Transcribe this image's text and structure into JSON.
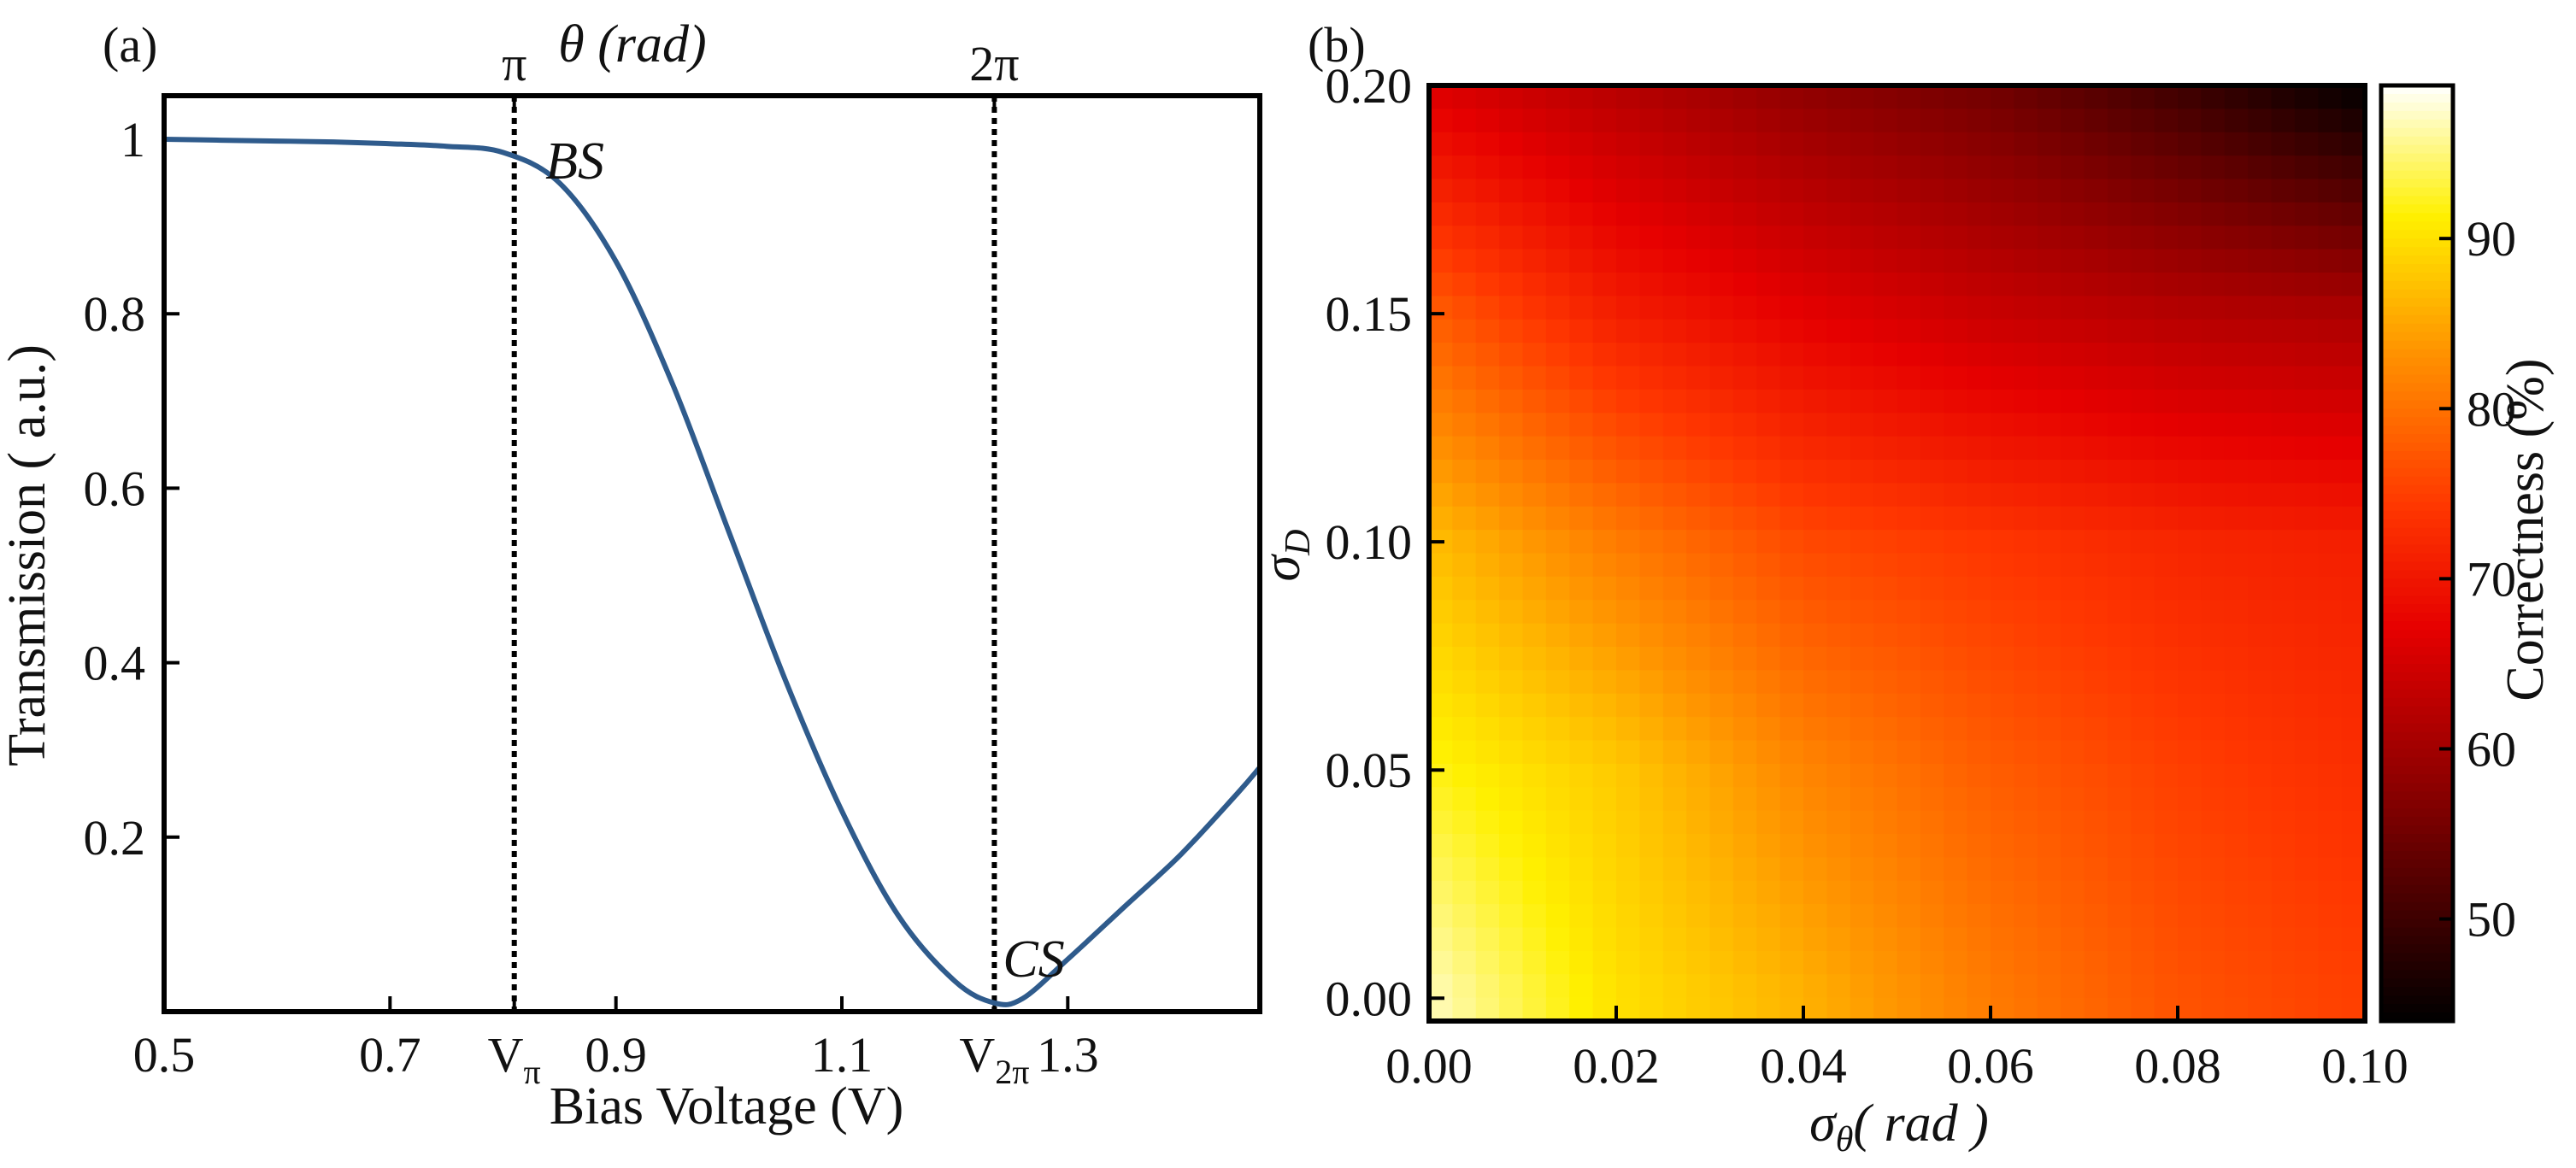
{
  "chart_data": [
    {
      "panel": "(a)",
      "type": "line",
      "xlabel": "Bias Voltage (V)",
      "ylabel": "Transmission ( a.u.)",
      "top_axis_label": "θ (rad)",
      "top_axis_label_symbol": "θ",
      "top_axis_label_unit": "(rad)",
      "top_ticks": [
        {
          "x": 0.81,
          "label": "π"
        },
        {
          "x": 1.235,
          "label": "2π"
        }
      ],
      "xlim": [
        0.5,
        1.47
      ],
      "ylim": [
        0.0,
        1.05
      ],
      "x_ticks": [
        {
          "x": 0.5,
          "label": "0.5"
        },
        {
          "x": 0.7,
          "label": "0.7"
        },
        {
          "x": 0.81,
          "label": "V",
          "sub": "π"
        },
        {
          "x": 0.9,
          "label": "0.9"
        },
        {
          "x": 1.1,
          "label": "1.1"
        },
        {
          "x": 1.235,
          "label": "V",
          "sub": "2π"
        },
        {
          "x": 1.3,
          "label": "1.3"
        }
      ],
      "y_ticks": [
        {
          "y": 1.0,
          "label": "1"
        },
        {
          "y": 0.8,
          "label": "0.8"
        },
        {
          "y": 0.6,
          "label": "0.6"
        },
        {
          "y": 0.4,
          "label": "0.4"
        },
        {
          "y": 0.2,
          "label": "0.2"
        }
      ],
      "vlines": [
        0.81,
        1.235
      ],
      "annotations": [
        {
          "text": "BS",
          "x": 0.83,
          "y": 0.965
        },
        {
          "text": "CS",
          "x": 1.235,
          "y": 0.05
        }
      ],
      "series": [
        {
          "name": "Transmission",
          "color": "#2f5b8c",
          "x": [
            0.5,
            0.55,
            0.6,
            0.65,
            0.7,
            0.75,
            0.8,
            0.85,
            0.9,
            0.95,
            1.0,
            1.05,
            1.1,
            1.15,
            1.2,
            1.235,
            1.26,
            1.3,
            1.35,
            1.4,
            1.45,
            1.47
          ],
          "y": [
            1.0,
            0.999,
            0.998,
            0.997,
            0.995,
            0.992,
            0.985,
            0.95,
            0.86,
            0.72,
            0.55,
            0.38,
            0.23,
            0.11,
            0.035,
            0.01,
            0.015,
            0.06,
            0.12,
            0.18,
            0.25,
            0.28
          ]
        }
      ]
    },
    {
      "panel": "(b)",
      "type": "heatmap",
      "xlabel": "σθ( rad )",
      "xlabel_symbol": "σ",
      "xlabel_sub": "θ",
      "xlabel_unit": "( rad )",
      "ylabel": "σD",
      "ylabel_symbol": "σ",
      "ylabel_sub": "D",
      "xlim": [
        0.0,
        0.1
      ],
      "ylim": [
        -0.005,
        0.2
      ],
      "x_ticks": [
        "0.00",
        "0.02",
        "0.04",
        "0.06",
        "0.08",
        "0.10"
      ],
      "x_tick_values": [
        0.0,
        0.02,
        0.04,
        0.06,
        0.08,
        0.1
      ],
      "y_ticks": [
        "0.00",
        "0.05",
        "0.10",
        "0.15",
        "0.20"
      ],
      "y_tick_values": [
        0.0,
        0.05,
        0.1,
        0.15,
        0.2
      ],
      "colorbar": {
        "label": "Correctness (%)",
        "range": [
          44,
          99
        ],
        "ticks": [
          "50",
          "60",
          "70",
          "80",
          "90"
        ],
        "tick_values": [
          50,
          60,
          70,
          80,
          90
        ]
      },
      "x": [
        0.0,
        0.02,
        0.04,
        0.06,
        0.08,
        0.1
      ],
      "y": [
        0.2,
        0.15,
        0.1,
        0.05,
        0.0
      ],
      "z": [
        [
          66,
          62,
          58,
          55,
          50,
          44
        ],
        [
          78,
          71,
          67,
          64,
          62,
          61
        ],
        [
          87,
          81,
          76,
          74,
          72,
          71
        ],
        [
          92,
          88,
          82,
          78,
          75,
          73
        ],
        [
          97,
          90,
          86,
          81,
          77,
          75
        ]
      ]
    }
  ]
}
